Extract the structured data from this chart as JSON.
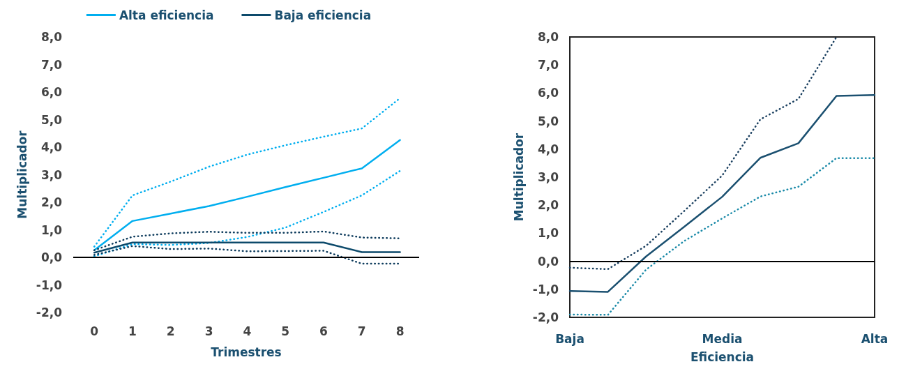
{
  "chart_data": [
    {
      "type": "line",
      "xlabel": "Trimestres",
      "ylabel": "Multiplicador",
      "x": [
        0,
        1,
        2,
        3,
        4,
        5,
        6,
        7,
        8
      ],
      "xlim": [
        -0.55,
        8.5
      ],
      "xticks": [
        0,
        1,
        2,
        3,
        4,
        5,
        6,
        7,
        8
      ],
      "ylim": [
        -2,
        8
      ],
      "yticks": [
        {
          "value": -2,
          "label": "-2,0"
        },
        {
          "value": -1,
          "label": "-1,0"
        },
        {
          "value": 0,
          "label": "0,0"
        },
        {
          "value": 1,
          "label": "1,0"
        },
        {
          "value": 2,
          "label": "2,0"
        },
        {
          "value": 3,
          "label": "3,0"
        },
        {
          "value": 4,
          "label": "4,0"
        },
        {
          "value": 5,
          "label": "5,0"
        },
        {
          "value": 6,
          "label": "6,0"
        },
        {
          "value": 7,
          "label": "7,0"
        },
        {
          "value": 8,
          "label": "8,0"
        }
      ],
      "grid": false,
      "legend": "top",
      "marker": "none",
      "ref_lines": [
        {
          "axis": "y",
          "value": 0,
          "color": "#000000"
        }
      ],
      "series": [
        {
          "name": "Alta eficiencia",
          "color": "#00aeef",
          "line_style": "solid",
          "values": [
            0.26,
            1.32,
            1.59,
            1.86,
            2.2,
            2.55,
            2.89,
            3.23,
            4.26
          ]
        },
        {
          "color": "#00aeef",
          "line_style": "dotted",
          "values": [
            0.39,
            2.25,
            2.75,
            3.29,
            3.73,
            4.07,
            4.38,
            4.68,
            5.78
          ]
        },
        {
          "color": "#00aeef",
          "line_style": "dotted",
          "values": [
            0.04,
            0.48,
            0.45,
            0.52,
            0.74,
            1.08,
            1.65,
            2.25,
            3.14
          ]
        },
        {
          "name": "Baja eficiencia",
          "color": "#0d4a6b",
          "line_style": "solid",
          "values": [
            0.17,
            0.54,
            0.54,
            0.54,
            0.54,
            0.54,
            0.54,
            0.19,
            0.19
          ]
        },
        {
          "color": "#0d3b5c",
          "line_style": "dotted",
          "values": [
            0.26,
            0.75,
            0.87,
            0.93,
            0.89,
            0.89,
            0.94,
            0.72,
            0.69
          ]
        },
        {
          "color": "#0d3b5c",
          "line_style": "dotted",
          "values": [
            0.09,
            0.41,
            0.3,
            0.32,
            0.22,
            0.23,
            0.24,
            -0.23,
            -0.23
          ]
        }
      ]
    },
    {
      "type": "line",
      "xlabel": "Eficiencia",
      "ylabel": "Multiplicador",
      "categories": [
        "Baja",
        null,
        null,
        null,
        "Media",
        null,
        null,
        null,
        "Alta"
      ],
      "ylim": [
        -2,
        8
      ],
      "yticks": [
        {
          "value": -2,
          "label": "-2,0"
        },
        {
          "value": -1,
          "label": "-1,0"
        },
        {
          "value": 0,
          "label": "0,0"
        },
        {
          "value": 1,
          "label": "1,0"
        },
        {
          "value": 2,
          "label": "2,0"
        },
        {
          "value": 3,
          "label": "3,0"
        },
        {
          "value": 4,
          "label": "4,0"
        },
        {
          "value": 5,
          "label": "5,0"
        },
        {
          "value": 6,
          "label": "6,0"
        },
        {
          "value": 7,
          "label": "7,0"
        },
        {
          "value": 8,
          "label": "8,0"
        }
      ],
      "grid": false,
      "legend": false,
      "marker": "none",
      "ref_lines": [
        {
          "axis": "y",
          "value": 0,
          "color": "#000000"
        }
      ],
      "series": [
        {
          "color": "#1b5070",
          "line_style": "solid",
          "values": [
            -1.06,
            -1.09,
            0.17,
            1.23,
            2.3,
            3.69,
            4.21,
            5.9,
            5.93
          ]
        },
        {
          "color": "#1b4060",
          "line_style": "dotted",
          "values": [
            -0.23,
            -0.28,
            0.55,
            1.79,
            3.06,
            5.06,
            5.79,
            8.0,
            null
          ]
        },
        {
          "color": "#1a8aa8",
          "line_style": "dotted",
          "values": [
            -1.9,
            -1.91,
            -0.3,
            0.72,
            1.53,
            2.31,
            2.66,
            3.68,
            3.68
          ]
        }
      ]
    }
  ]
}
